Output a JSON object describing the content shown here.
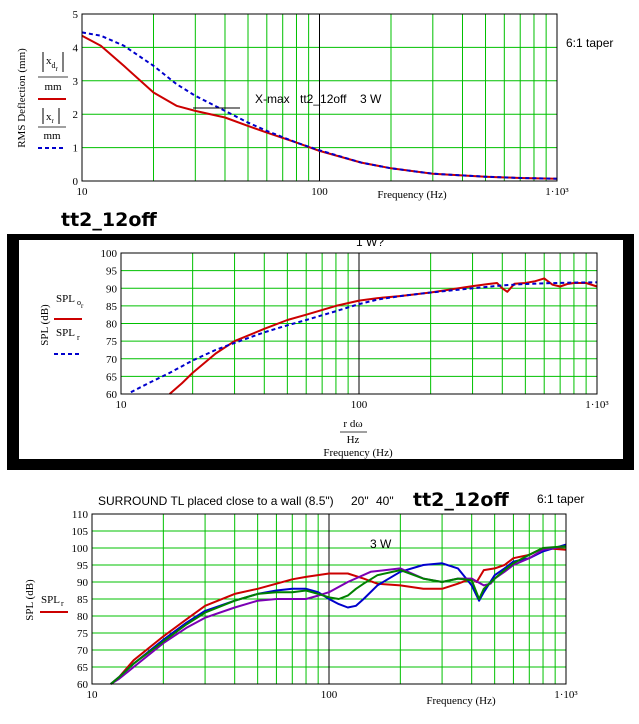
{
  "headings": {
    "title_1": "tt2_12off",
    "title_2": "tt2_12off",
    "taper_1": "6:1 taper",
    "taper_2": "6:1 taper"
  },
  "chart_data": [
    {
      "type": "line",
      "xscale": "log",
      "xlim": [
        10,
        1000
      ],
      "ylim": [
        0,
        5
      ],
      "xticks": [
        "10",
        "100",
        "1·10³"
      ],
      "yticks": [
        "0",
        "1",
        "2",
        "3",
        "4",
        "5"
      ],
      "xlabel": "Frequency (Hz)",
      "ylabel": "RMS Deflection (mm)",
      "legend": [
        "|x_d_r|/mm",
        "|x_r|/mm"
      ],
      "annotations": [
        "X-max",
        "tt2_12off",
        "3 W"
      ],
      "grid": true,
      "vline_x": 100,
      "series": [
        {
          "name": "|x_d_r|/mm",
          "color": "#cc0000",
          "style": "solid",
          "x": [
            10,
            12,
            15,
            20,
            25,
            30,
            40,
            50,
            60,
            80,
            100,
            150,
            200,
            300,
            500,
            700,
            1000
          ],
          "y": [
            4.35,
            4.05,
            3.45,
            2.65,
            2.25,
            2.1,
            1.9,
            1.65,
            1.45,
            1.15,
            0.9,
            0.55,
            0.38,
            0.22,
            0.13,
            0.09,
            0.07
          ]
        },
        {
          "name": "|x_r|/mm",
          "color": "#0000cc",
          "style": "dashed",
          "x": [
            10,
            12,
            15,
            20,
            25,
            30,
            40,
            50,
            60,
            80,
            100,
            150,
            200,
            300,
            500,
            700,
            1000
          ],
          "y": [
            4.45,
            4.35,
            4.05,
            3.45,
            2.9,
            2.55,
            2.1,
            1.75,
            1.5,
            1.15,
            0.92,
            0.55,
            0.38,
            0.22,
            0.13,
            0.09,
            0.07
          ]
        }
      ]
    },
    {
      "type": "line",
      "xscale": "log",
      "xlim": [
        10,
        1000
      ],
      "ylim": [
        60,
        100
      ],
      "xticks": [
        "10",
        "100",
        "1·10³"
      ],
      "yticks": [
        "60",
        "65",
        "70",
        "75",
        "80",
        "85",
        "90",
        "95",
        "100"
      ],
      "xlabel": "Frequency (Hz)",
      "xlabel_expr": [
        "r dω",
        "Hz"
      ],
      "ylabel": "SPL (dB)",
      "legend": [
        "SPL_o_r",
        "SPL_r"
      ],
      "annotations": [
        "1 W?"
      ],
      "grid": true,
      "vline_x": 100,
      "series": [
        {
          "name": "SPL_o_r",
          "color": "#cc0000",
          "style": "solid",
          "x": [
            16,
            18,
            20,
            25,
            30,
            40,
            50,
            60,
            80,
            100,
            120,
            150,
            200,
            250,
            300,
            350,
            380,
            400,
            420,
            450,
            500,
            550,
            600,
            650,
            700,
            750,
            800,
            900,
            1000
          ],
          "y": [
            60,
            63,
            66,
            71.5,
            75,
            78.5,
            81,
            82.5,
            85,
            86.5,
            87.2,
            87.8,
            88.8,
            89.8,
            90.6,
            91.2,
            91.5,
            90,
            89,
            91.3,
            91.5,
            92,
            92.8,
            91,
            90.5,
            91.2,
            91.5,
            91.5,
            90.5
          ]
        },
        {
          "name": "SPL_r",
          "color": "#0000cc",
          "style": "dashed",
          "x": [
            11,
            13,
            16,
            20,
            25,
            30,
            40,
            50,
            60,
            80,
            100,
            120,
            150,
            200,
            300,
            400,
            500,
            600,
            800,
            1000
          ],
          "y": [
            60.5,
            63,
            66,
            69.5,
            72.5,
            74.5,
            77.5,
            79.5,
            81,
            83.5,
            85.5,
            86.8,
            87.8,
            88.8,
            90,
            90.8,
            91.2,
            91.4,
            91.6,
            91.7
          ]
        }
      ]
    },
    {
      "type": "line",
      "xscale": "log",
      "xlim": [
        10,
        1000
      ],
      "ylim": [
        60,
        110
      ],
      "xticks": [
        "10",
        "100",
        "1·10³"
      ],
      "yticks": [
        "60",
        "65",
        "70",
        "75",
        "80",
        "85",
        "90",
        "95",
        "100",
        "105",
        "110"
      ],
      "xlabel": "Frequency (Hz)",
      "ylabel": "SPL (dB)",
      "legend": [
        "SPL_r"
      ],
      "annotations": [
        "SURROUND TL placed close to a wall (8.5\")",
        "20\"",
        "40\"",
        "3 W"
      ],
      "annotation_colors": [
        "#cc0000",
        "#0000cc",
        "#7b00b4",
        "#000000"
      ],
      "grid": true,
      "vline_x": 100,
      "series": [
        {
          "name": "8.5\"",
          "color": "#cc0000",
          "style": "solid",
          "x": [
            12,
            13,
            15,
            20,
            25,
            30,
            40,
            50,
            60,
            70,
            80,
            100,
            120,
            140,
            160,
            200,
            250,
            300,
            350,
            400,
            420,
            450,
            500,
            550,
            600,
            700,
            800,
            1000
          ],
          "y": [
            60,
            62,
            67,
            74,
            79,
            83,
            86.5,
            88,
            89.5,
            90.8,
            91.5,
            92.5,
            92.5,
            91,
            89.5,
            89,
            88,
            88,
            89.5,
            91,
            90,
            93.5,
            94,
            95,
            97,
            98,
            100,
            99.5
          ]
        },
        {
          "name": "20\"",
          "color": "#0000cc",
          "style": "solid",
          "x": [
            12,
            13,
            15,
            20,
            25,
            30,
            40,
            50,
            60,
            70,
            80,
            90,
            100,
            110,
            120,
            130,
            140,
            160,
            200,
            250,
            300,
            350,
            400,
            430,
            450,
            500,
            550,
            600,
            700,
            800,
            1000
          ],
          "y": [
            60,
            62,
            66,
            73,
            78,
            81.5,
            84.5,
            86.5,
            87.5,
            88,
            88,
            87,
            85,
            83.5,
            82.5,
            83,
            85,
            89,
            93,
            95,
            95.5,
            94,
            89,
            84.5,
            87,
            92,
            94,
            96,
            97,
            99,
            101
          ]
        },
        {
          "name": "40\"",
          "color": "#7b00b4",
          "style": "solid",
          "x": [
            12,
            13,
            15,
            20,
            25,
            30,
            40,
            50,
            60,
            70,
            80,
            90,
            100,
            120,
            150,
            200,
            250,
            300,
            350,
            400,
            450,
            480,
            500,
            550,
            600,
            700,
            800,
            1000
          ],
          "y": [
            60,
            61.5,
            65,
            72,
            76.5,
            79.5,
            82.5,
            84.5,
            85,
            85,
            85,
            86,
            87,
            90,
            93,
            94,
            91,
            90,
            91,
            91,
            89,
            89.5,
            91,
            93,
            95,
            97,
            99.5,
            100.5
          ]
        },
        {
          "name": "green",
          "color": "#008000",
          "style": "solid",
          "x": [
            12,
            13,
            15,
            20,
            25,
            30,
            40,
            50,
            60,
            70,
            80,
            90,
            100,
            110,
            120,
            130,
            140,
            160,
            200,
            250,
            300,
            350,
            400,
            430,
            450,
            500,
            550,
            600,
            700,
            800,
            1000
          ],
          "y": [
            60,
            62,
            66,
            72.5,
            77.5,
            81,
            84.5,
            86.5,
            87,
            87,
            87.5,
            86.5,
            85.5,
            85,
            86,
            88,
            89.5,
            92,
            93.5,
            91,
            90,
            91,
            90.5,
            85,
            88,
            91,
            93.5,
            95.5,
            98,
            100,
            100.5
          ]
        }
      ]
    }
  ]
}
